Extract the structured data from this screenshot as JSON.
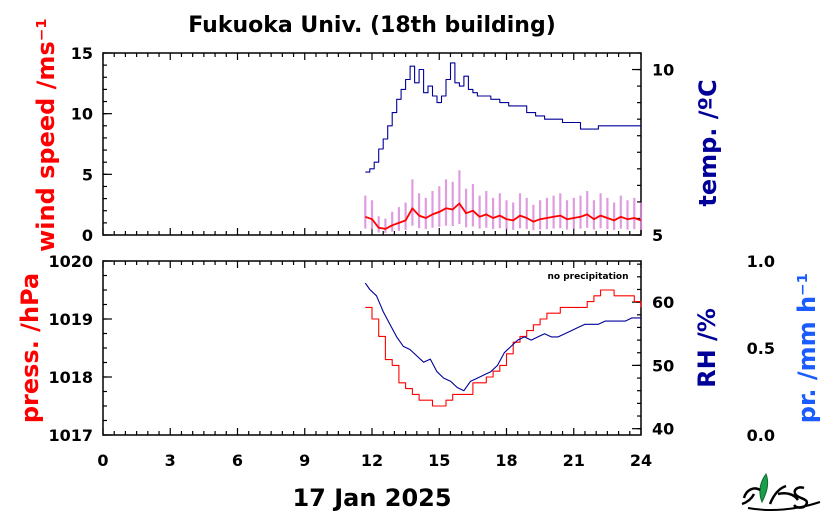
{
  "colors": {
    "wind": "#ff0000",
    "wind_raw": "#d98cd9",
    "temp": "#000099",
    "press": "#ff0000",
    "rh": "#000099",
    "precip": "#1a5cff",
    "frame": "#000000",
    "logo": "#1a9e4a"
  },
  "chart_data": [
    {
      "type": "line",
      "title": "Fukuoka Univ. (18th building)",
      "xlabel": "17 Jan 2025",
      "x_ticks": [
        "0",
        "3",
        "6",
        "9",
        "12",
        "15",
        "18",
        "21",
        "24"
      ],
      "xlim": [
        0,
        24
      ],
      "left_axis": {
        "label": "wind speed /ms⁻¹",
        "ylim": [
          0,
          15
        ],
        "ticks": [
          "0",
          "5",
          "10",
          "15"
        ]
      },
      "right_axis": {
        "label": "temp. /ºC",
        "ylim": [
          5,
          10.5
        ],
        "ticks": [
          "5",
          "10"
        ]
      },
      "series": [
        {
          "axis": "left",
          "x": [
            11.7,
            12.0,
            12.3,
            12.6,
            12.9,
            13.2,
            13.5,
            13.8,
            14.1,
            14.4,
            14.7,
            15.0,
            15.3,
            15.6,
            15.9,
            16.2,
            16.5,
            16.8,
            17.1,
            17.4,
            17.7,
            18.0,
            18.3,
            18.6,
            18.9,
            19.2,
            19.5,
            19.8,
            20.1,
            20.4,
            20.7,
            21.0,
            21.3,
            21.6,
            21.9,
            22.2,
            22.5,
            22.8,
            23.1,
            23.4,
            23.7,
            24.0
          ],
          "values": [
            1.5,
            1.3,
            0.6,
            0.5,
            0.8,
            1.0,
            1.2,
            2.2,
            1.6,
            1.4,
            1.7,
            1.9,
            2.2,
            2.1,
            2.6,
            1.8,
            2.0,
            1.5,
            1.7,
            1.4,
            1.6,
            1.3,
            1.2,
            1.6,
            1.4,
            1.1,
            1.3,
            1.4,
            1.5,
            1.6,
            1.3,
            1.4,
            1.5,
            1.7,
            1.3,
            1.6,
            1.4,
            1.2,
            1.5,
            1.3,
            1.4,
            1.2
          ]
        },
        {
          "axis": "right",
          "x": [
            11.7,
            11.9,
            12.1,
            12.3,
            12.5,
            12.7,
            12.9,
            13.1,
            13.3,
            13.5,
            13.7,
            13.9,
            14.1,
            14.3,
            14.5,
            14.7,
            14.9,
            15.1,
            15.3,
            15.5,
            15.7,
            15.9,
            16.1,
            16.3,
            16.5,
            16.7,
            16.9,
            17.3,
            17.7,
            18.1,
            18.5,
            18.9,
            19.3,
            19.7,
            20.1,
            20.5,
            20.9,
            21.3,
            21.7,
            22.1,
            22.5,
            22.9,
            23.3,
            23.7,
            24.0
          ],
          "values": [
            6.9,
            7.0,
            7.2,
            7.6,
            7.9,
            8.3,
            8.7,
            9.1,
            9.4,
            9.7,
            10.1,
            9.6,
            10.0,
            9.3,
            9.5,
            9.2,
            9.0,
            9.2,
            9.7,
            10.2,
            9.6,
            9.5,
            9.8,
            9.4,
            9.3,
            9.2,
            9.2,
            9.1,
            9.0,
            8.9,
            8.9,
            8.7,
            8.6,
            8.5,
            8.5,
            8.4,
            8.4,
            8.2,
            8.2,
            8.3,
            8.3,
            8.3,
            8.3,
            8.3,
            8.3
          ]
        }
      ]
    },
    {
      "type": "line",
      "xlim": [
        0,
        24
      ],
      "note": "no precipitation",
      "left_axis": {
        "label": "press. /hPa",
        "ylim": [
          1017,
          1020
        ],
        "ticks": [
          "1017",
          "1018",
          "1019",
          "1020"
        ]
      },
      "right_axis": {
        "label": "RH /%",
        "ylim": [
          39,
          66.5
        ],
        "ticks": [
          "40",
          "50",
          "60"
        ]
      },
      "far_right_axis": {
        "label": "pr. /mm h⁻¹",
        "ylim": [
          0.0,
          1.0
        ],
        "ticks": [
          "0.0",
          "0.5",
          "1.0"
        ]
      },
      "series": [
        {
          "axis": "left",
          "x": [
            11.7,
            12.0,
            12.3,
            12.6,
            12.9,
            13.2,
            13.5,
            13.8,
            14.1,
            14.4,
            14.7,
            15.0,
            15.3,
            15.6,
            15.9,
            16.2,
            16.5,
            16.8,
            17.1,
            17.4,
            17.7,
            18.0,
            18.3,
            18.6,
            18.9,
            19.2,
            19.5,
            19.8,
            20.1,
            20.4,
            20.7,
            21.0,
            21.3,
            21.6,
            21.9,
            22.2,
            22.5,
            22.8,
            23.1,
            23.4,
            23.7,
            24.0
          ],
          "values": [
            1019.2,
            1019.0,
            1018.7,
            1018.3,
            1018.2,
            1017.9,
            1017.8,
            1017.7,
            1017.6,
            1017.6,
            1017.5,
            1017.5,
            1017.6,
            1017.7,
            1017.7,
            1017.7,
            1017.9,
            1017.9,
            1018.0,
            1018.1,
            1018.2,
            1018.4,
            1018.6,
            1018.7,
            1018.8,
            1018.9,
            1019.0,
            1019.1,
            1019.1,
            1019.2,
            1019.2,
            1019.2,
            1019.2,
            1019.3,
            1019.4,
            1019.5,
            1019.5,
            1019.4,
            1019.4,
            1019.4,
            1019.3,
            1019.2
          ]
        },
        {
          "axis": "right",
          "x": [
            11.7,
            11.9,
            12.2,
            12.5,
            12.8,
            13.1,
            13.4,
            13.7,
            14.0,
            14.3,
            14.6,
            14.9,
            15.2,
            15.5,
            15.8,
            16.1,
            16.4,
            16.7,
            17.0,
            17.3,
            17.6,
            17.9,
            18.2,
            18.5,
            18.8,
            19.1,
            19.4,
            19.7,
            20.0,
            20.3,
            20.6,
            20.9,
            21.2,
            21.5,
            21.8,
            22.1,
            22.4,
            22.7,
            23.0,
            23.3,
            23.6,
            24.0
          ],
          "values": [
            63.0,
            62.0,
            61.0,
            58.5,
            56.5,
            54.5,
            53.0,
            52.5,
            51.5,
            50.5,
            51.0,
            49.0,
            48.0,
            47.5,
            46.5,
            46.0,
            47.5,
            48.0,
            48.5,
            49.0,
            50.0,
            52.0,
            53.0,
            54.0,
            54.5,
            54.0,
            54.5,
            55.0,
            54.5,
            54.5,
            55.0,
            55.5,
            56.0,
            56.5,
            56.5,
            56.5,
            57.0,
            57.0,
            57.0,
            57.0,
            57.5,
            57.5
          ]
        }
      ]
    }
  ]
}
